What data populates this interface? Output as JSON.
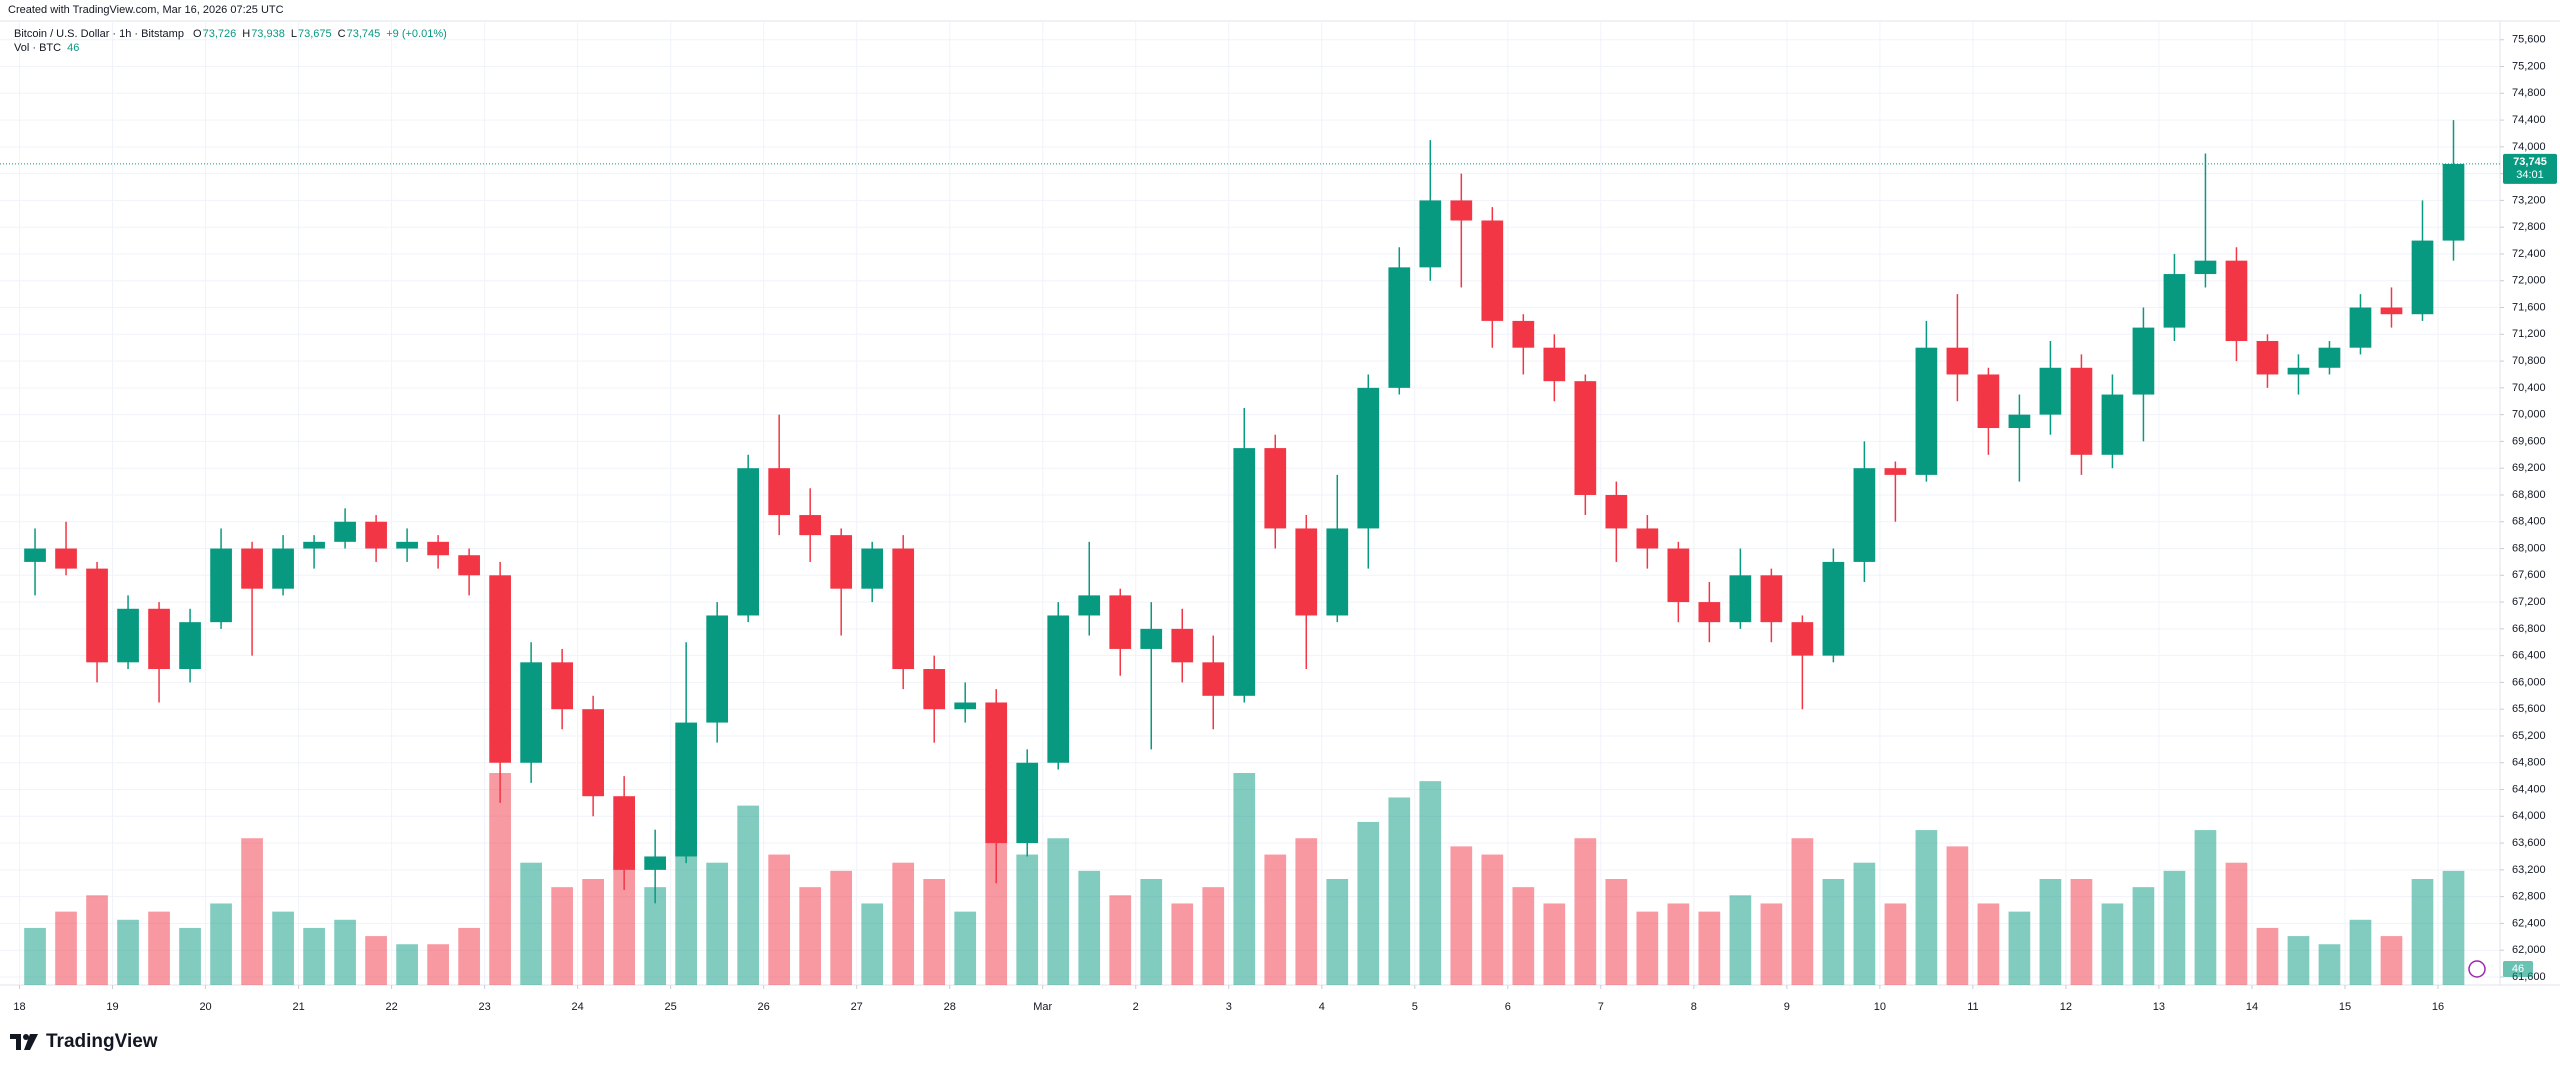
{
  "header": {
    "created": "Created with TradingView.com, Mar 16, 2026 07:25 UTC"
  },
  "brand": "TradingView",
  "chart_data": {
    "type": "candlestick",
    "legend": {
      "symbol": "Bitcoin / U.S. Dollar · 1h · Bitstamp",
      "ohlc": [
        {
          "key": "O",
          "value": "73,726"
        },
        {
          "key": "H",
          "value": "73,938"
        },
        {
          "key": "L",
          "value": "73,675"
        },
        {
          "key": "C",
          "value": "73,745"
        }
      ],
      "change": "+9 (+0.01%)",
      "volume_label": "Vol · BTC",
      "current_volume": 46
    },
    "last_price_label": "73,745",
    "countdown": "34:01",
    "up_color": "#089981",
    "down_color": "#f23645",
    "grid": true,
    "xlim": [
      -0.63,
      80
    ],
    "xticks": [
      {
        "value": 0,
        "label": "18"
      },
      {
        "value": 3,
        "label": "19"
      },
      {
        "value": 6,
        "label": "20"
      },
      {
        "value": 9,
        "label": "21"
      },
      {
        "value": 12,
        "label": "22"
      },
      {
        "value": 15,
        "label": "23"
      },
      {
        "value": 18,
        "label": "24"
      },
      {
        "value": 21,
        "label": "25"
      },
      {
        "value": 24,
        "label": "26"
      },
      {
        "value": 27,
        "label": "27"
      },
      {
        "value": 30,
        "label": "28"
      },
      {
        "value": 33,
        "label": "Mar"
      },
      {
        "value": 36,
        "label": "2"
      },
      {
        "value": 39,
        "label": "3"
      },
      {
        "value": 42,
        "label": "4"
      },
      {
        "value": 45,
        "label": "5"
      },
      {
        "value": 48,
        "label": "6"
      },
      {
        "value": 51,
        "label": "7"
      },
      {
        "value": 54,
        "label": "8"
      },
      {
        "value": 57,
        "label": "9"
      },
      {
        "value": 60,
        "label": "10"
      },
      {
        "value": 63,
        "label": "11"
      },
      {
        "value": 66,
        "label": "12"
      },
      {
        "value": 69,
        "label": "13"
      },
      {
        "value": 72,
        "label": "14"
      },
      {
        "value": 75,
        "label": "15"
      },
      {
        "value": 78,
        "label": "16"
      }
    ],
    "ylim": [
      61480,
      75880
    ],
    "yticks": [
      {
        "value": 61600,
        "label": "61,600"
      },
      {
        "value": 62000,
        "label": "62,000"
      },
      {
        "value": 62400,
        "label": "62,400"
      },
      {
        "value": 62800,
        "label": "62,800"
      },
      {
        "value": 63200,
        "label": "63,200"
      },
      {
        "value": 63600,
        "label": "63,600"
      },
      {
        "value": 64000,
        "label": "64,000"
      },
      {
        "value": 64400,
        "label": "64,400"
      },
      {
        "value": 64800,
        "label": "64,800"
      },
      {
        "value": 65200,
        "label": "65,200"
      },
      {
        "value": 65600,
        "label": "65,600"
      },
      {
        "value": 66000,
        "label": "66,000"
      },
      {
        "value": 66400,
        "label": "66,400"
      },
      {
        "value": 66800,
        "label": "66,800"
      },
      {
        "value": 67200,
        "label": "67,200"
      },
      {
        "value": 67600,
        "label": "67,600"
      },
      {
        "value": 68000,
        "label": "68,000"
      },
      {
        "value": 68400,
        "label": "68,400"
      },
      {
        "value": 68800,
        "label": "68,800"
      },
      {
        "value": 69200,
        "label": "69,200"
      },
      {
        "value": 69600,
        "label": "69,600"
      },
      {
        "value": 70000,
        "label": "70,000"
      },
      {
        "value": 70400,
        "label": "70,400"
      },
      {
        "value": 70800,
        "label": "70,800"
      },
      {
        "value": 71200,
        "label": "71,200"
      },
      {
        "value": 71600,
        "label": "71,600"
      },
      {
        "value": 72000,
        "label": "72,000"
      },
      {
        "value": 72400,
        "label": "72,400"
      },
      {
        "value": 72800,
        "label": "72,800"
      },
      {
        "value": 73200,
        "label": "73,200"
      },
      {
        "value": 73600,
        "label": "73,600"
      },
      {
        "value": 74000,
        "label": "74,000"
      },
      {
        "value": 74400,
        "label": "74,400"
      },
      {
        "value": 74800,
        "label": "74,800"
      },
      {
        "value": 75200,
        "label": "75,200"
      },
      {
        "value": 75600,
        "label": "75,600"
      }
    ],
    "open": [
      67800,
      68000,
      67700,
      66300,
      67100,
      66200,
      66900,
      68000,
      67400,
      68000,
      68100,
      68400,
      68000,
      68100,
      67900,
      67600,
      64800,
      66300,
      65600,
      64300,
      63200,
      63400,
      65400,
      67000,
      69200,
      68500,
      68200,
      67400,
      68000,
      66200,
      65600,
      65700,
      63600,
      64800,
      67000,
      67300,
      66500,
      66800,
      66300,
      65800,
      69500,
      68300,
      67000,
      68300,
      70400,
      72200,
      73200,
      72900,
      71400,
      71000,
      70500,
      68800,
      68300,
      68000,
      67200,
      66900,
      67600,
      66900,
      66400,
      67800,
      69200,
      69100,
      71000,
      70600,
      69800,
      70000,
      70700,
      69400,
      70300,
      71300,
      72100,
      72300,
      71100,
      70600,
      70700,
      71000,
      71600,
      71500,
      72600
    ],
    "high": [
      68300,
      68400,
      67800,
      67300,
      67200,
      67100,
      68300,
      68100,
      68200,
      68200,
      68600,
      68500,
      68300,
      68200,
      68000,
      67800,
      66600,
      66500,
      65800,
      64600,
      63800,
      66600,
      67200,
      69400,
      70000,
      68900,
      68300,
      68100,
      68200,
      66400,
      66000,
      65900,
      65000,
      67200,
      68100,
      67400,
      67200,
      67100,
      66700,
      70100,
      69700,
      68500,
      69100,
      70600,
      72500,
      74100,
      73600,
      73100,
      71500,
      71200,
      70600,
      69000,
      68500,
      68100,
      67500,
      68000,
      67700,
      67000,
      68000,
      69600,
      69300,
      71400,
      71800,
      70700,
      70300,
      71100,
      70900,
      70600,
      71600,
      72400,
      73900,
      72500,
      71200,
      70900,
      71100,
      71800,
      71900,
      73200,
      74400
    ],
    "low": [
      67300,
      67600,
      66000,
      66200,
      65700,
      66000,
      66800,
      66400,
      67300,
      67700,
      68000,
      67800,
      67800,
      67700,
      67300,
      64200,
      64500,
      65300,
      64000,
      62900,
      62700,
      63300,
      65100,
      66900,
      68200,
      67800,
      66700,
      67200,
      65900,
      65100,
      65400,
      63000,
      63400,
      64700,
      66700,
      66100,
      65000,
      66000,
      65300,
      65700,
      68000,
      66200,
      66900,
      67700,
      70300,
      72000,
      71900,
      71000,
      70600,
      70200,
      68500,
      67800,
      67700,
      66900,
      66600,
      66800,
      66600,
      65600,
      66300,
      67500,
      68400,
      69000,
      70200,
      69400,
      69000,
      69700,
      69100,
      69200,
      69600,
      71100,
      71900,
      70800,
      70400,
      70300,
      70600,
      70900,
      71300,
      71400,
      72300
    ],
    "close": [
      68000,
      67700,
      66300,
      67100,
      66200,
      66900,
      68000,
      67400,
      68000,
      68100,
      68400,
      68000,
      68100,
      67900,
      67600,
      64800,
      66300,
      65600,
      64300,
      63200,
      63400,
      65400,
      67000,
      69200,
      68500,
      68200,
      67400,
      68000,
      66200,
      65600,
      65700,
      63600,
      64800,
      67000,
      67300,
      66500,
      66800,
      66300,
      65800,
      69500,
      68300,
      67000,
      68300,
      70400,
      72200,
      73200,
      72900,
      71400,
      71000,
      70500,
      68800,
      68300,
      68000,
      67200,
      66900,
      67600,
      66900,
      66400,
      67800,
      69200,
      69100,
      71000,
      70600,
      69800,
      70000,
      70700,
      69400,
      70300,
      71300,
      72100,
      72300,
      71100,
      70600,
      70700,
      71000,
      71600,
      71500,
      72600,
      73745
    ],
    "volume": [
      700,
      900,
      1100,
      800,
      900,
      700,
      1000,
      1800,
      900,
      700,
      800,
      600,
      500,
      500,
      700,
      2600,
      1500,
      1200,
      1300,
      1600,
      1200,
      1900,
      1500,
      2200,
      1600,
      1200,
      1400,
      1000,
      1500,
      1300,
      900,
      2500,
      1600,
      1800,
      1400,
      1100,
      1300,
      1000,
      1200,
      2600,
      1600,
      1800,
      1300,
      2000,
      2300,
      2500,
      1700,
      1600,
      1200,
      1000,
      1800,
      1300,
      900,
      1000,
      900,
      1100,
      1000,
      1800,
      1300,
      1500,
      1000,
      1900,
      1700,
      1000,
      900,
      1300,
      1300,
      1000,
      1200,
      1400,
      1900,
      1500,
      700,
      600,
      500,
      800,
      600,
      1300,
      1400
    ]
  }
}
